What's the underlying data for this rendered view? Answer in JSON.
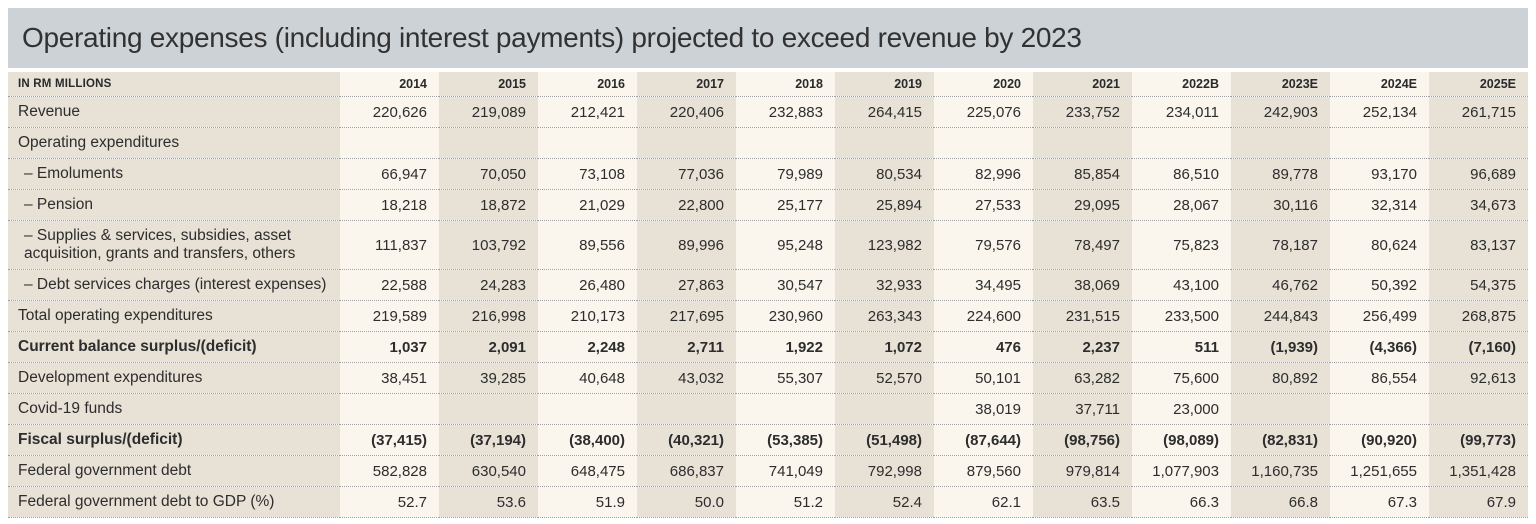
{
  "title": "Operating expenses (including interest payments) projected to exceed revenue by 2023",
  "colors": {
    "title_bar_bg": "#cdd2d6",
    "beige_column": "#e7e1d6",
    "cream_column": "#faf6ed",
    "text": "#2d2d2d",
    "dotted_divider": "#9d9d9d"
  },
  "table": {
    "unit_label": "IN RM MILLIONS",
    "columns": [
      "2014",
      "2015",
      "2016",
      "2017",
      "2018",
      "2019",
      "2020",
      "2021",
      "2022B",
      "2023E",
      "2024E",
      "2025E"
    ],
    "rows": [
      {
        "label": "Revenue",
        "bold": false,
        "values": [
          "220,626",
          "219,089",
          "212,421",
          "220,406",
          "232,883",
          "264,415",
          "225,076",
          "233,752",
          "234,011",
          "242,903",
          "252,134",
          "261,715"
        ]
      },
      {
        "label": "Operating expenditures",
        "bold": false,
        "values": [
          "",
          "",
          "",
          "",
          "",
          "",
          "",
          "",
          "",
          "",
          "",
          ""
        ]
      },
      {
        "label": "– Emoluments",
        "bold": false,
        "values": [
          "66,947",
          "70,050",
          "73,108",
          "77,036",
          "79,989",
          "80,534",
          "82,996",
          "85,854",
          "86,510",
          "89,778",
          "93,170",
          "96,689"
        ]
      },
      {
        "label": "– Pension",
        "bold": false,
        "values": [
          "18,218",
          "18,872",
          "21,029",
          "22,800",
          "25,177",
          "25,894",
          "27,533",
          "29,095",
          "28,067",
          "30,116",
          "32,314",
          "34,673"
        ]
      },
      {
        "label": "– Supplies & services, subsidies, asset acquisition, grants and transfers, others",
        "bold": false,
        "values": [
          "111,837",
          "103,792",
          "89,556",
          "89,996",
          "95,248",
          "123,982",
          "79,576",
          "78,497",
          "75,823",
          "78,187",
          "80,624",
          "83,137"
        ]
      },
      {
        "label": "– Debt services charges (interest expenses)",
        "bold": false,
        "values": [
          "22,588",
          "24,283",
          "26,480",
          "27,863",
          "30,547",
          "32,933",
          "34,495",
          "38,069",
          "43,100",
          "46,762",
          "50,392",
          "54,375"
        ]
      },
      {
        "label": "Total operating expenditures",
        "bold": false,
        "values": [
          "219,589",
          "216,998",
          "210,173",
          "217,695",
          "230,960",
          "263,343",
          "224,600",
          "231,515",
          "233,500",
          "244,843",
          "256,499",
          "268,875"
        ]
      },
      {
        "label": "Current balance surplus/(deficit)",
        "bold": true,
        "values": [
          "1,037",
          "2,091",
          "2,248",
          "2,711",
          "1,922",
          "1,072",
          "476",
          "2,237",
          "511",
          "(1,939)",
          "(4,366)",
          "(7,160)"
        ]
      },
      {
        "label": "Development expenditures",
        "bold": false,
        "values": [
          "38,451",
          "39,285",
          "40,648",
          "43,032",
          "55,307",
          "52,570",
          "50,101",
          "63,282",
          "75,600",
          "80,892",
          "86,554",
          "92,613"
        ]
      },
      {
        "label": "Covid-19 funds",
        "bold": false,
        "values": [
          "",
          "",
          "",
          "",
          "",
          "",
          "38,019",
          "37,711",
          "23,000",
          "",
          "",
          ""
        ]
      },
      {
        "label": "Fiscal surplus/(deficit)",
        "bold": true,
        "values": [
          "(37,415)",
          "(37,194)",
          "(38,400)",
          "(40,321)",
          "(53,385)",
          "(51,498)",
          "(87,644)",
          "(98,756)",
          "(98,089)",
          "(82,831)",
          "(90,920)",
          "(99,773)"
        ]
      },
      {
        "label": "Federal government debt",
        "bold": false,
        "values": [
          "582,828",
          "630,540",
          "648,475",
          "686,837",
          "741,049",
          "792,998",
          "879,560",
          "979,814",
          "1,077,903",
          "1,160,735",
          "1,251,655",
          "1,351,428"
        ]
      },
      {
        "label": "Federal government debt to GDP (%)",
        "bold": false,
        "values": [
          "52.7",
          "53.6",
          "51.9",
          "50.0",
          "51.2",
          "52.4",
          "62.1",
          "63.5",
          "66.3",
          "66.8",
          "67.3",
          "67.9"
        ]
      }
    ]
  }
}
